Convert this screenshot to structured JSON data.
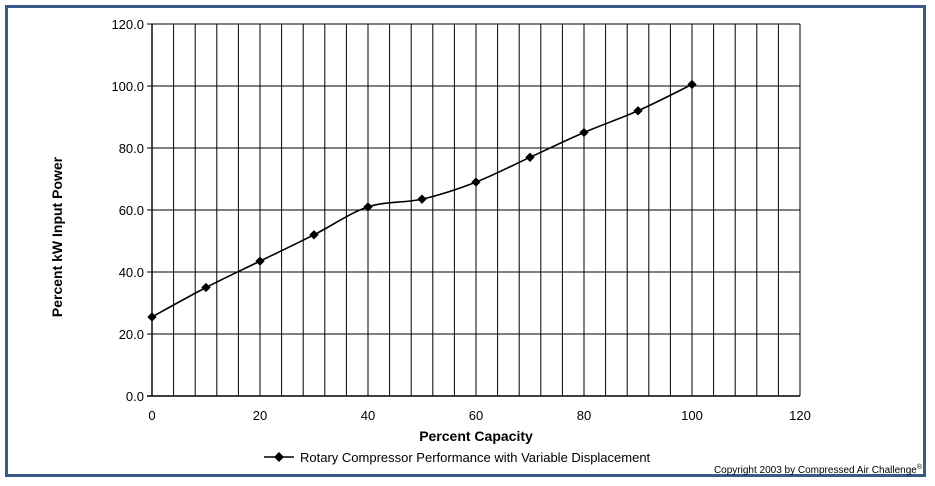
{
  "chart_data": {
    "type": "line",
    "xlabel": "Percent Capacity",
    "ylabel": "Percent kW Input Power",
    "xlim": [
      0,
      120
    ],
    "ylim": [
      0,
      120
    ],
    "x_ticks": [
      "0",
      "20",
      "40",
      "60",
      "80",
      "100",
      "120"
    ],
    "y_ticks": [
      "0.0",
      "20.0",
      "40.0",
      "60.0",
      "80.0",
      "100.0",
      "120.0"
    ],
    "grid": true,
    "legend_position": "bottom",
    "series": [
      {
        "name": "Rotary Compressor Performance with Variable Displacement",
        "x": [
          0,
          10,
          20,
          30,
          40,
          50,
          60,
          70,
          80,
          90,
          100
        ],
        "y": [
          25.5,
          35,
          43.5,
          52,
          61,
          63.5,
          69,
          77,
          85,
          92,
          100.5
        ],
        "color": "#000000"
      }
    ],
    "copyright": "Copyright 2003 by Compressed Air Challenge",
    "copyright_mark": "®"
  }
}
